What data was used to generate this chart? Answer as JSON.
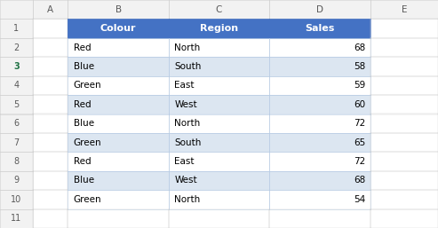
{
  "headers": [
    "Colour",
    "Region",
    "Sales"
  ],
  "rows": [
    [
      "Red",
      "North",
      "68"
    ],
    [
      "Blue",
      "South",
      "58"
    ],
    [
      "Green",
      "East",
      "59"
    ],
    [
      "Red",
      "West",
      "60"
    ],
    [
      "Blue",
      "North",
      "72"
    ],
    [
      "Green",
      "South",
      "65"
    ],
    [
      "Red",
      "East",
      "72"
    ],
    [
      "Blue",
      "West",
      "68"
    ],
    [
      "Green",
      "North",
      "54"
    ]
  ],
  "col_labels": [
    "A",
    "B",
    "C",
    "D",
    "E"
  ],
  "header_bg": "#4472C4",
  "header_fg": "#FFFFFF",
  "data_bg_light": "#DCE6F1",
  "grid_color": "#B8CCE4",
  "row_header_bg": "#F2F2F2",
  "row_header_border": "#D0D0D0",
  "selected_row_color": "#217346",
  "fig_bg": "#FFFFFF",
  "cell_text_color": "#000000",
  "col_header_bg": "#F2F2F2",
  "col_header_text": "#595959"
}
